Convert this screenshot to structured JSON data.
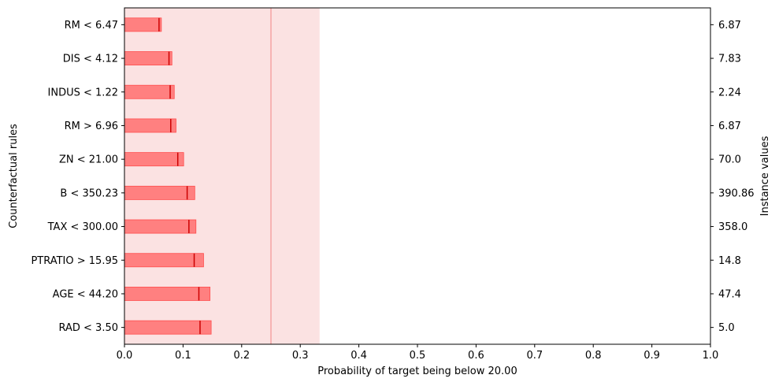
{
  "chart_data": {
    "type": "bar",
    "orientation": "horizontal",
    "xlabel": "Probability of target being below 20.00",
    "ylabel_left": "Counterfactual rules",
    "ylabel_right": "Instance values",
    "xlim": [
      0.0,
      1.0
    ],
    "xticks": [
      "0.0",
      "0.1",
      "0.2",
      "0.3",
      "0.4",
      "0.5",
      "0.6",
      "0.7",
      "0.8",
      "0.9",
      "1.0"
    ],
    "grid": false,
    "colors": {
      "bar_fill": "#ff8080",
      "bar_edge": "#ff4d4d",
      "marker": "#cc0000",
      "band_fill": "#fbe2e2",
      "band_line": "#f4a3a3"
    },
    "reference": {
      "band": [
        0.0,
        0.333
      ],
      "line": 0.25
    },
    "rules": [
      {
        "label": "RM < 6.47",
        "instance_value": "6.87",
        "low": 0.0,
        "high": 0.063,
        "point": 0.059
      },
      {
        "label": "DIS < 4.12",
        "instance_value": "7.83",
        "low": 0.0,
        "high": 0.081,
        "point": 0.076
      },
      {
        "label": "INDUS < 1.22",
        "instance_value": "2.24",
        "low": 0.0,
        "high": 0.085,
        "point": 0.078
      },
      {
        "label": "RM > 6.96",
        "instance_value": "6.87",
        "low": 0.0,
        "high": 0.088,
        "point": 0.079
      },
      {
        "label": "ZN < 21.00",
        "instance_value": "70.0",
        "low": 0.0,
        "high": 0.101,
        "point": 0.091
      },
      {
        "label": "B < 350.23",
        "instance_value": "390.86",
        "low": 0.0,
        "high": 0.12,
        "point": 0.107
      },
      {
        "label": "TAX < 300.00",
        "instance_value": "358.0",
        "low": 0.0,
        "high": 0.122,
        "point": 0.11
      },
      {
        "label": "PTRATIO > 15.95",
        "instance_value": "14.8",
        "low": 0.0,
        "high": 0.135,
        "point": 0.119
      },
      {
        "label": "AGE < 44.20",
        "instance_value": "47.4",
        "low": 0.0,
        "high": 0.146,
        "point": 0.127
      },
      {
        "label": "RAD < 3.50",
        "instance_value": "5.0",
        "low": 0.0,
        "high": 0.148,
        "point": 0.129
      }
    ]
  }
}
